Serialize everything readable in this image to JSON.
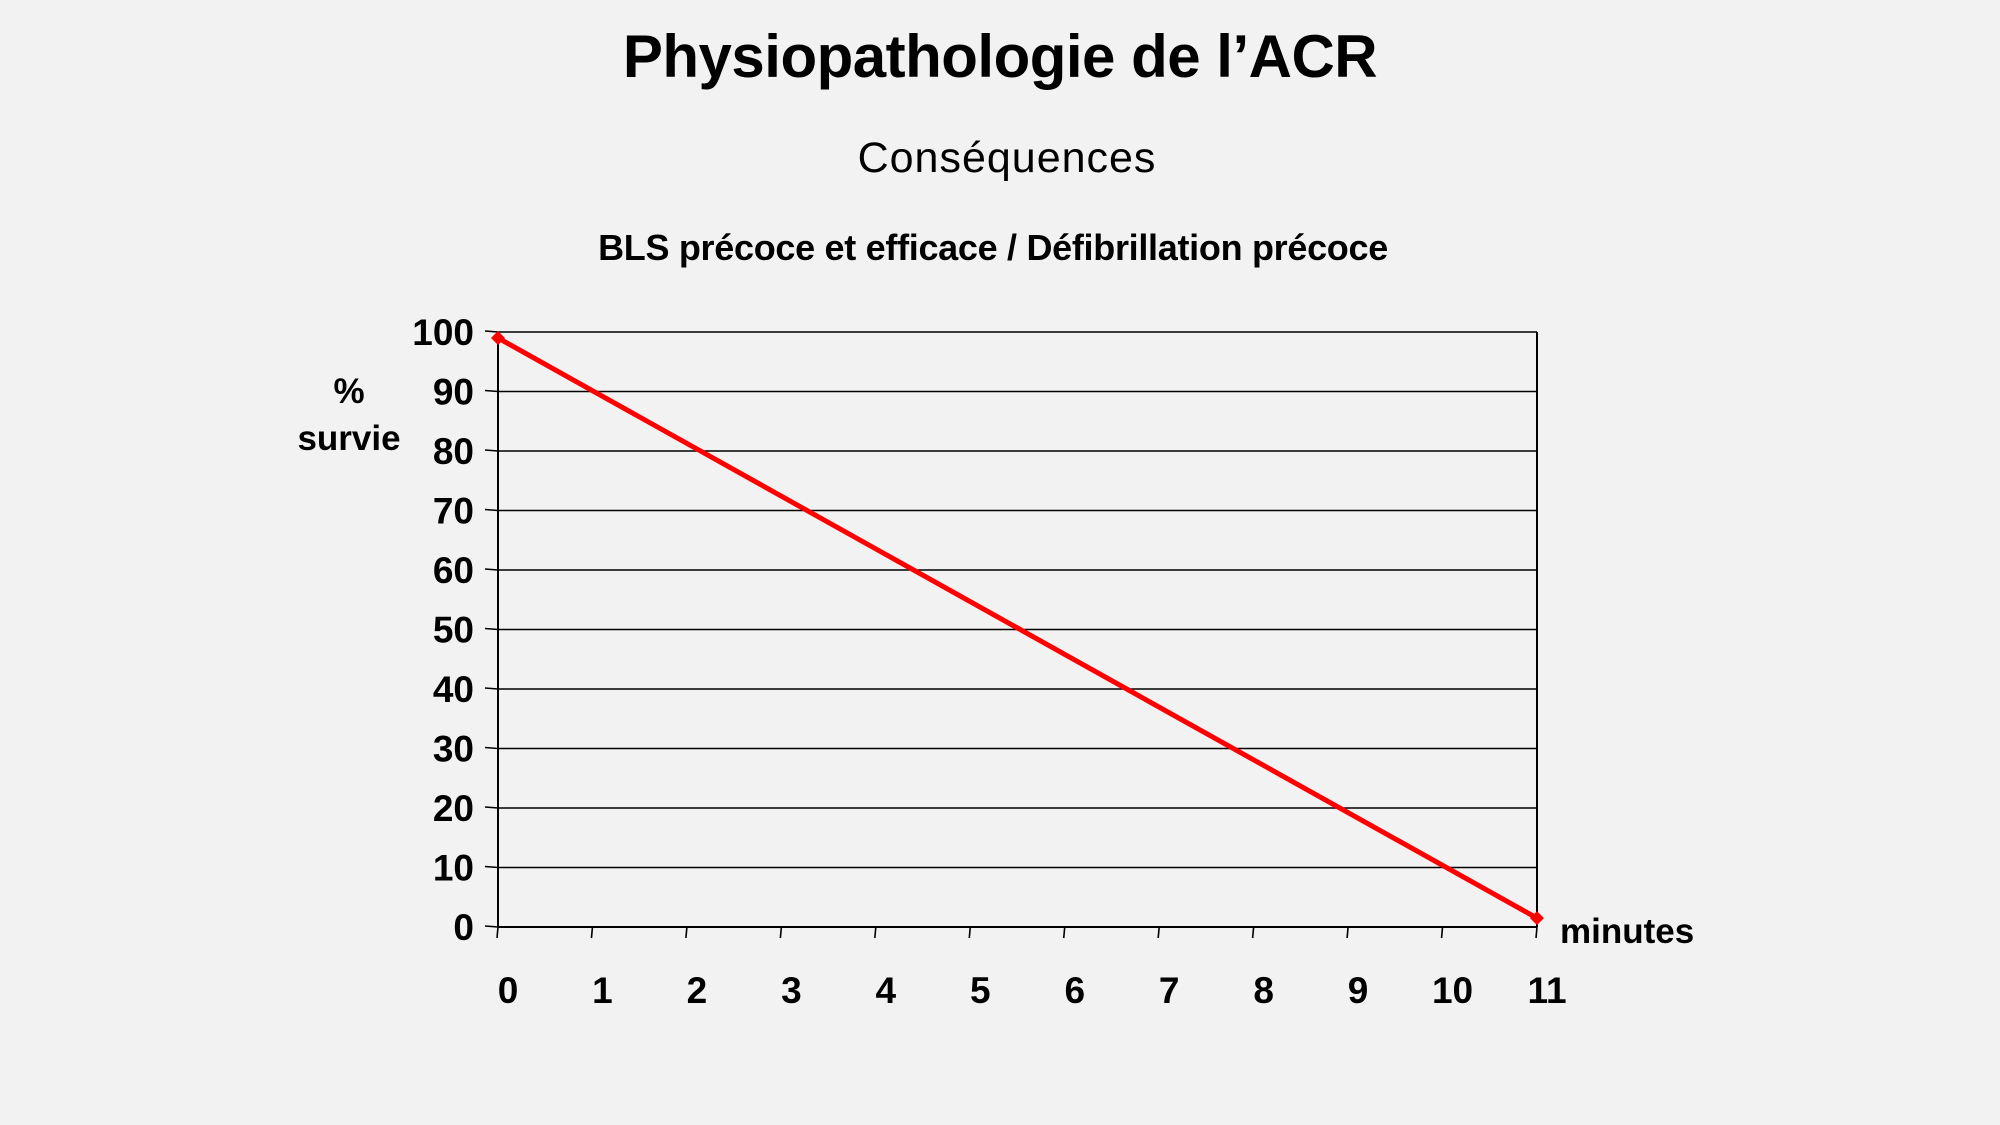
{
  "slide": {
    "title": "Physiopathologie de l’ACR",
    "section": "Conséquences",
    "background": "#f2f2f2"
  },
  "chart_data": {
    "type": "line",
    "title": "BLS précoce et efficace / Défibrillation précoce",
    "xlabel": "minutes",
    "ylabel": "% survie",
    "ylabel_lines": [
      "%",
      "survie"
    ],
    "x_ticks": [
      0,
      1,
      2,
      3,
      4,
      5,
      6,
      7,
      8,
      9,
      10,
      11
    ],
    "y_ticks": [
      0,
      10,
      20,
      30,
      40,
      50,
      60,
      70,
      80,
      90,
      100
    ],
    "xlim": [
      0,
      11
    ],
    "ylim": [
      0,
      100
    ],
    "grid": "horizontal",
    "legend": null,
    "series": [
      {
        "name": "% survie",
        "color": "#ff0000",
        "marker": "diamond",
        "x": [
          0,
          11
        ],
        "values": [
          99,
          1.5
        ]
      }
    ]
  }
}
